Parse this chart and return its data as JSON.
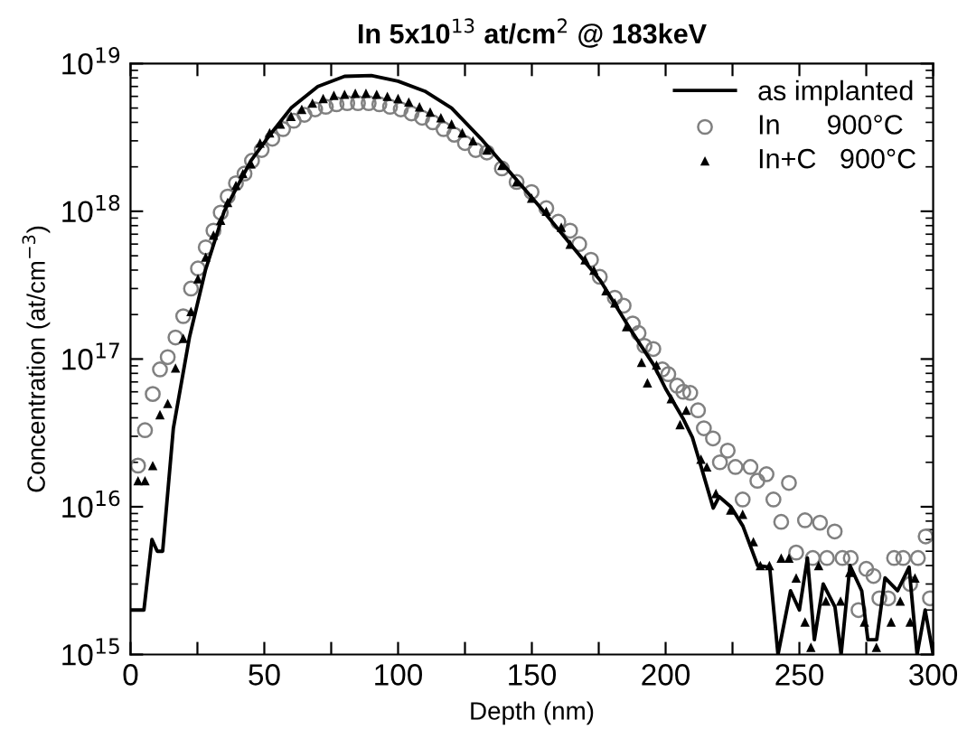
{
  "chart_data": {
    "type": "line",
    "title": "In 5x10$^{13}$ at/cm$^{2}$ @ 183keV",
    "xlabel": "Depth (nm)",
    "ylabel": "Concentration (at/cm$^{−3}$)",
    "log": "y",
    "xlim": [
      0,
      300
    ],
    "ylim": [
      1000000000000000.0,
      1e+19
    ],
    "xticks": [
      0,
      {
        "value": 25,
        "label": null
      },
      50,
      {
        "value": 75,
        "label": null
      },
      100,
      {
        "value": 125,
        "label": null
      },
      150,
      {
        "value": 175,
        "label": null
      },
      200,
      {
        "value": 225,
        "label": null
      },
      250,
      {
        "value": 275,
        "label": null
      },
      300
    ],
    "yticks": [
      {
        "value": 1000000000000000.0,
        "label": "10$^{15}$"
      },
      {
        "value": 1e+16,
        "label": "10$^{16}$"
      },
      {
        "value": 1e+17,
        "label": "10$^{17}$"
      },
      {
        "value": 1e+18,
        "label": "10$^{18}$"
      },
      {
        "value": 1e+19,
        "label": "10$^{19}$"
      }
    ],
    "grid": false,
    "legend": "top right",
    "series": [
      {
        "name": "as implanted",
        "color": "#000000",
        "marker": "none",
        "line_style": "solid",
        "x": [
          0,
          5,
          8,
          10,
          12,
          16,
          22,
          28,
          35,
          45,
          51,
          60,
          70,
          80,
          90,
          100,
          110,
          120,
          131,
          153,
          175.6,
          186.7,
          195.6,
          200,
          206.7,
          210,
          213.3,
          217.8,
          220,
          224.4,
          228.9,
          234.4,
          238.9,
          242,
          246.7,
          250,
          253,
          255.6,
          258.9,
          263.3,
          265.6,
          268.9,
          273.3,
          275.6,
          278.9,
          282,
          286.7,
          291,
          294,
          297,
          300
        ],
        "values": [
          2000000000000000.0,
          2000000000000000.0,
          6000000000000000.0,
          5000000000000000.0,
          5000000000000000.0,
          3.4e+16,
          1.4e+17,
          4e+17,
          1e+18,
          2.2e+18,
          3.1e+18,
          5e+18,
          7e+18,
          8.2e+18,
          8.3e+18,
          7.6e+18,
          6.5e+18,
          5e+18,
          3.1e+18,
          1.07e+18,
          3.4e+17,
          1.6e+17,
          9.1e+16,
          6.3e+16,
          3.9e+16,
          2.95e+16,
          1.86e+16,
          9800000000000000.0,
          1.17e+16,
          1e+16,
          7400000000000000.0,
          4000000000000000.0,
          3900000000000000.0,
          1000000000000000.0,
          2700000000000000.0,
          2000000000000000.0,
          4500000000000000.0,
          1260000000000000.0,
          3000000000000000.0,
          2100000000000000.0,
          1000000000000000.0,
          4000000000000000.0,
          2700000000000000.0,
          1260000000000000.0,
          1260000000000000.0,
          3300000000000000.0,
          2700000000000000.0,
          3900000000000000.0,
          1000000000000000.0,
          2000000000000000.0,
          1000000000000000.0
        ]
      },
      {
        "name": "In      900°C",
        "type": "scatter",
        "color": "#808080",
        "marker": "circle",
        "x": [
          2.8,
          5.4,
          8.3,
          11,
          13.9,
          16.8,
          19.7,
          22.6,
          25.2,
          28.1,
          31,
          33.7,
          36.3,
          39.4,
          42.6,
          45.4,
          49,
          53,
          57,
          61,
          65,
          69,
          73,
          77,
          81,
          85,
          89,
          93,
          97,
          101,
          105,
          109,
          113,
          117,
          121,
          125,
          129,
          133.2,
          138.8,
          144.3,
          149.9,
          155.4,
          159.9,
          164.3,
          167.7,
          172.1,
          175.4,
          181,
          184.3,
          187.7,
          189.9,
          192.1,
          195.4,
          198.8,
          201,
          204.3,
          206.6,
          209.2,
          212.1,
          214.3,
          217.7,
          220.3,
          223.2,
          226.1,
          228.8,
          231.7,
          234.3,
          237.7,
          240.3,
          243.2,
          246.1,
          248.8,
          252.1,
          255,
          257.7,
          260.3,
          263.2,
          266.1,
          269.2,
          272.1,
          275,
          277.7,
          279.9,
          283.2,
          285.4,
          288.8,
          291.4,
          294.3,
          297.2,
          298.8
        ],
        "values": [
          1.9e+16,
          3.3e+16,
          5.8e+16,
          8.5e+16,
          1.03e+17,
          1.4e+17,
          1.95e+17,
          3e+17,
          4.1e+17,
          5.7e+17,
          7.4e+17,
          9.8e+17,
          1.26e+18,
          1.55e+18,
          1.8e+18,
          2.2e+18,
          2.6e+18,
          3.1e+18,
          3.6e+18,
          4.1e+18,
          4.5e+18,
          4.9e+18,
          5.1e+18,
          5.3e+18,
          5.4e+18,
          5.4e+18,
          5.4e+18,
          5.3e+18,
          5.1e+18,
          4.9e+18,
          4.6e+18,
          4.3e+18,
          4e+18,
          3.6e+18,
          3.3e+18,
          2.9e+18,
          2.6e+18,
          2.5e+18,
          1.95e+18,
          1.58e+18,
          1.35e+18,
          1.05e+18,
          8.5e+17,
          7.4e+17,
          6e+17,
          4.7e+17,
          3.6e+17,
          2.6e+17,
          2.3e+17,
          1.74e+17,
          1.5e+17,
          1.23e+17,
          1.17e+17,
          8.5e+16,
          7.9e+16,
          6.6e+16,
          6e+16,
          5.9e+16,
          4.5e+16,
          3.4e+16,
          2.9e+16,
          2e+16,
          2.4e+16,
          1.86e+16,
          1.12e+16,
          1.86e+16,
          1.5e+16,
          1.66e+16,
          1.12e+16,
          7900000000000000.0,
          1.45e+16,
          4900000000000000.0,
          8100000000000000.0,
          4500000000000000.0,
          7800000000000000.0,
          4500000000000000.0,
          6800000000000000.0,
          4500000000000000.0,
          4500000000000000.0,
          2000000000000000.0,
          3800000000000000.0,
          3400000000000000.0,
          2400000000000000.0,
          2400000000000000.0,
          4500000000000000.0,
          4500000000000000.0,
          3000000000000000.0,
          4500000000000000.0,
          6300000000000000.0,
          2400000000000000.0
        ]
      },
      {
        "name": "In+C   900°C",
        "type": "scatter",
        "color": "#000000",
        "marker": "triangle",
        "x": [
          2.8,
          5.4,
          8.3,
          11,
          13.9,
          16.8,
          19.7,
          22.6,
          25.2,
          28.1,
          31,
          33.7,
          36.3,
          39.4,
          42,
          45,
          48.4,
          52,
          56,
          60,
          64,
          68,
          72,
          76,
          80,
          84,
          88,
          92,
          96,
          100,
          104,
          108,
          112,
          116,
          120,
          124,
          128,
          133.2,
          138.8,
          144.3,
          149.9,
          155.4,
          161,
          164.3,
          169.9,
          173.2,
          177.7,
          181,
          185.4,
          191,
          193.2,
          196.6,
          202.1,
          205.4,
          207.7,
          213.2,
          215.4,
          218.8,
          224.3,
          228.8,
          232.8,
          235.4,
          238.8,
          243.2,
          246.1,
          248.8,
          252.1,
          254.3,
          257.2,
          259.9,
          265.4,
          268.8,
          274.3,
          278.8,
          284.3,
          287.7,
          291.4,
          293.2
        ],
        "values": [
          1.5e+16,
          1.5e+16,
          1.9e+16,
          4.2e+16,
          5e+16,
          8.7e+16,
          1.38e+17,
          2.1e+17,
          3.5e+17,
          4.9e+17,
          6.9e+17,
          8.7e+17,
          1.15e+18,
          1.5e+18,
          1.8e+18,
          2.1e+18,
          2.9e+18,
          3.4e+18,
          3.9e+18,
          4.4e+18,
          4.9e+18,
          5.4e+18,
          5.8e+18,
          6.1e+18,
          6.2e+18,
          6.3e+18,
          6.3e+18,
          6.2e+18,
          6e+18,
          5.8e+18,
          5.5e+18,
          5.1e+18,
          4.7e+18,
          4.3e+18,
          3.9e+18,
          3.4e+18,
          3e+18,
          2.6e+18,
          2.05e+18,
          1.58e+18,
          1.23e+18,
          1e+18,
          7.8e+17,
          6e+17,
          4.7e+17,
          4e+17,
          2.9e+17,
          2.4e+17,
          1.66e+17,
          9.5e+16,
          6.9e+16,
          9.1e+16,
          5.4e+16,
          3.6e+16,
          4.5e+16,
          2.1e+16,
          1.86e+16,
          1.23e+16,
          9500000000000000.0,
          8900000000000000.0,
          5800000000000000.0,
          4000000000000000.0,
          4000000000000000.0,
          4500000000000000.0,
          4500000000000000.0,
          3300000000000000.0,
          1660000000000000.0,
          1120000000000000.0,
          4000000000000000.0,
          2300000000000000.0,
          2300000000000000.0,
          3600000000000000.0,
          1660000000000000.0,
          1120000000000000.0,
          1660000000000000.0,
          2300000000000000.0,
          1660000000000000.0,
          3300000000000000.0
        ]
      }
    ]
  }
}
